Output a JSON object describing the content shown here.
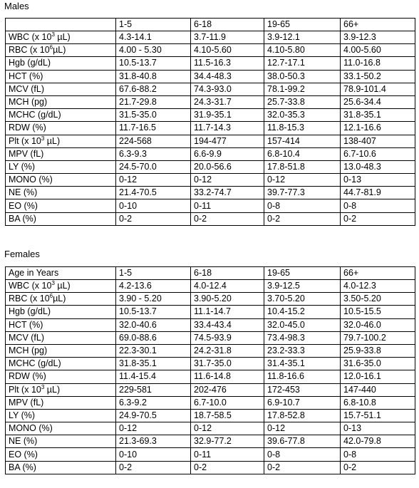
{
  "males": {
    "title": "Males",
    "header": [
      "",
      "1-5",
      "6-18",
      "19-65",
      "66+"
    ],
    "rows": [
      {
        "param": "WBC (x 10",
        "sup": "3",
        "post": " µL)",
        "values": [
          "4.3-14.1",
          "3.7-11.9",
          "3.9-12.1",
          "3.9-12.3"
        ]
      },
      {
        "param": "RBC (x 10",
        "sup": "6",
        "post": "µL)",
        "values": [
          "4.00 - 5.30",
          "4.10-5.60",
          "4.10-5.80",
          "4.00-5.60"
        ]
      },
      {
        "param": "Hgb (g/dL)",
        "values": [
          "10.5-13.7",
          "11.5-16.3",
          "12.7-17.1",
          "11.0-16.8"
        ]
      },
      {
        "param": "HCT (%)",
        "values": [
          "31.8-40.8",
          "34.4-48.3",
          "38.0-50.3",
          "33.1-50.2"
        ]
      },
      {
        "param": "MCV (fL)",
        "values": [
          "67.6-88.2",
          "74.3-93.0",
          "78.1-99.2",
          "78.9-101.4"
        ]
      },
      {
        "param": "MCH (pg)",
        "values": [
          "21.7-29.8",
          "24.3-31.7",
          "25.7-33.8",
          "25.6-34.4"
        ]
      },
      {
        "param": "MCHC (g/dL)",
        "values": [
          "31.5-35.0",
          "31.9-35.1",
          "32.0-35.3",
          "31.8-35.1"
        ]
      },
      {
        "param": "RDW (%)",
        "values": [
          "11.7-16.5",
          "11.7-14.3",
          "11.8-15.3",
          "12.1-16.6"
        ]
      },
      {
        "param": "Plt (x 10",
        "sup": "3",
        "post": " µL)",
        "values": [
          "224-568",
          "194-477",
          "157-414",
          "138-407"
        ]
      },
      {
        "param": "MPV (fL)",
        "values": [
          "6.3-9.3",
          "6.6-9.9",
          "6.8-10.4",
          "6.7-10.6"
        ]
      },
      {
        "param": "LY (%)",
        "values": [
          "24.5-70.0",
          "20.0-56.6",
          "17.8-51.8",
          "13.0-48.3"
        ]
      },
      {
        "param": "MONO (%)",
        "values": [
          "0-12",
          "0-12",
          "0-12",
          "0-13"
        ]
      },
      {
        "param": "NE (%)",
        "values": [
          "21.4-70.5",
          "33.2-74.7",
          "39.7-77.3",
          "44.7-81.9"
        ]
      },
      {
        "param": "EO (%)",
        "values": [
          "0-10",
          "0-11",
          "0-8",
          "0-8"
        ]
      },
      {
        "param": "BA (%)",
        "values": [
          "0-2",
          "0-2",
          "0-2",
          "0-2"
        ]
      }
    ]
  },
  "females": {
    "title": "Females",
    "header": [
      "Age in Years",
      "1-5",
      "6-18",
      "19-65",
      "66+"
    ],
    "rows": [
      {
        "param": "WBC (x 10",
        "sup": "3",
        "post": " µL)",
        "values": [
          "4.2-13.6",
          "4.0-12.4",
          "3.9-12.5",
          "4.0-12.3"
        ]
      },
      {
        "param": "RBC (x 10",
        "sup": "6",
        "post": "µL)",
        "values": [
          "3.90 - 5.20",
          "3.90-5.20",
          "3.70-5.20",
          "3.50-5.20"
        ]
      },
      {
        "param": "Hgb (g/dL)",
        "values": [
          "10.5-13.7",
          "11.1-14.7",
          "10.4-15.2",
          "10.5-15.5"
        ]
      },
      {
        "param": "HCT (%)",
        "values": [
          "32.0-40.6",
          "33.4-43.4",
          "32.0-45.0",
          "32.0-46.0"
        ]
      },
      {
        "param": "MCV (fL)",
        "values": [
          "69.0-88.6",
          "74.5-93.9",
          "73.4-98.3",
          "79.7-100.2"
        ]
      },
      {
        "param": "MCH (pg)",
        "values": [
          "22.3-30.1",
          "24.2-31.8",
          "23.2-33.3",
          "25.9-33.8"
        ]
      },
      {
        "param": "MCHC (g/dL)",
        "values": [
          "31.8-35.1",
          "31.7-35.0",
          "31.4-35.1",
          "31.6-35.0"
        ]
      },
      {
        "param": "RDW (%)",
        "values": [
          "11.4-15.4",
          "11.6-14.8",
          "11.8-16.6",
          "12.0-16.1"
        ]
      },
      {
        "param": "Plt (x 10",
        "sup": "3",
        "post": " µL)",
        "values": [
          "229-581",
          "202-476",
          "172-453",
          "147-440"
        ]
      },
      {
        "param": "MPV (fL)",
        "values": [
          "6.3-9.2",
          "6.7-10.0",
          "6.9-10.7",
          "6.8-10.8"
        ]
      },
      {
        "param": "LY (%)",
        "values": [
          "24.9-70.5",
          "18.7-58.5",
          "17.8-52.8",
          "15.7-51.1"
        ]
      },
      {
        "param": "MONO (%)",
        "values": [
          "0-12",
          "0-12",
          "0-12",
          "0-13"
        ]
      },
      {
        "param": "NE (%)",
        "values": [
          "21.3-69.3",
          "32.9-77.2",
          "39.6-77.8",
          "42.0-79.8"
        ]
      },
      {
        "param": "EO (%)",
        "values": [
          "0-10",
          "0-11",
          "0-8",
          "0-8"
        ]
      },
      {
        "param": "BA (%)",
        "values": [
          "0-2",
          "0-2",
          "0-2",
          "0-2"
        ]
      }
    ]
  }
}
